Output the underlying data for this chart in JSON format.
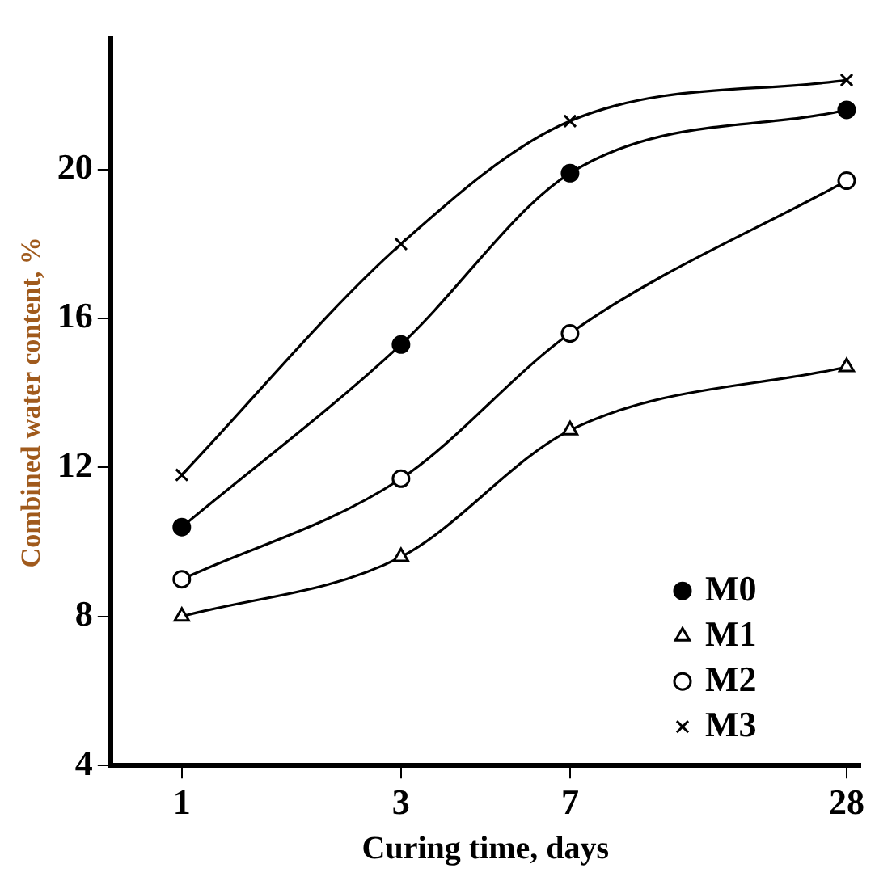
{
  "chart_data": {
    "type": "line",
    "xlabel": "Curing time, days",
    "ylabel": "Combined water content, %",
    "x": [
      1,
      3,
      7,
      28
    ],
    "log": "x",
    "xlim": [
      0.7,
      30
    ],
    "xticks": [
      1,
      3,
      7,
      28
    ],
    "ylim": [
      4,
      23.5
    ],
    "yticks": [
      4,
      8,
      12,
      16,
      20
    ],
    "grid": false,
    "legend": "bottom right",
    "line_style": "solid",
    "series": [
      {
        "name": "M0",
        "color": "#000000",
        "marker": "circle",
        "values": [
          10.4,
          15.3,
          19.9,
          21.6
        ]
      },
      {
        "name": "M1",
        "color": "#000000",
        "marker": "triangle",
        "values": [
          8.0,
          9.6,
          13.0,
          14.7
        ]
      },
      {
        "name": "M2",
        "color": "#000000",
        "marker": "circle-open",
        "values": [
          9.0,
          11.7,
          15.6,
          19.7
        ]
      },
      {
        "name": "M3",
        "color": "#000000",
        "marker": "cross",
        "values": [
          11.8,
          18.0,
          21.3,
          22.4
        ]
      }
    ]
  }
}
